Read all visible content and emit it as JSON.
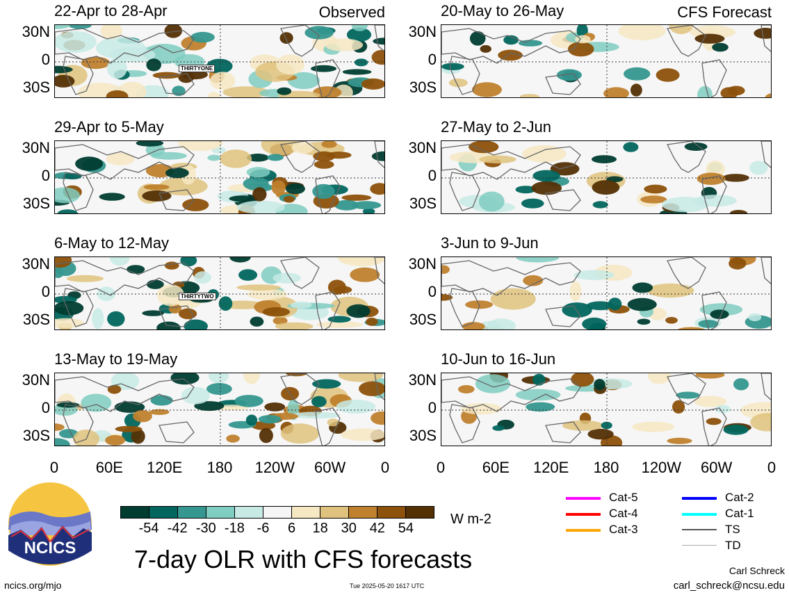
{
  "labels": {
    "observed": "Observed",
    "forecast": "CFS Forecast",
    "lat": [
      "30N",
      "0",
      "30S"
    ],
    "lon": [
      "0",
      "60E",
      "120E",
      "180",
      "120W",
      "60W",
      "0"
    ]
  },
  "panels": [
    {
      "title": "22-Apr to 28-Apr",
      "storm": "THIRTYONE"
    },
    {
      "title": "29-Apr to 5-May",
      "storm": ""
    },
    {
      "title": "6-May to 12-May",
      "storm": "THIRTYTWO"
    },
    {
      "title": "13-May to 19-May",
      "storm": ""
    },
    {
      "title": "20-May to 26-May",
      "storm": ""
    },
    {
      "title": "27-May to 2-Jun",
      "storm": ""
    },
    {
      "title": "3-Jun to 9-Jun",
      "storm": ""
    },
    {
      "title": "10-Jun to 16-Jun",
      "storm": ""
    }
  ],
  "colorbar": {
    "colors": [
      "#003c30",
      "#01665e",
      "#35978f",
      "#80cdc1",
      "#c7eae5",
      "#f5f5f5",
      "#f6e8c3",
      "#dfc27d",
      "#bf812d",
      "#8c510a",
      "#543005"
    ],
    "ticks": [
      "-54",
      "-42",
      "-30",
      "-18",
      "-6",
      "6",
      "18",
      "30",
      "42",
      "54"
    ],
    "units": "W m-2"
  },
  "legend": [
    {
      "label": "Cat-5",
      "color": "#ff00ff"
    },
    {
      "label": "Cat-4",
      "color": "#ff0000"
    },
    {
      "label": "Cat-3",
      "color": "#ffa500"
    },
    {
      "label": "Cat-2",
      "color": "#0000ff"
    },
    {
      "label": "Cat-1",
      "color": "#00ffff"
    },
    {
      "label": "TS",
      "color": "#555555"
    },
    {
      "label": "TD",
      "color": "#aaaaaa"
    }
  ],
  "logo_text": "NCICS",
  "title": "7-day OLR with CFS forecasts",
  "footer": {
    "url": "ncics.org/mjo",
    "timestamp": "Tue 2025-05-20 1617 UTC",
    "author": "Carl Schreck",
    "email": "carl_schreck@ncsu.edu"
  }
}
